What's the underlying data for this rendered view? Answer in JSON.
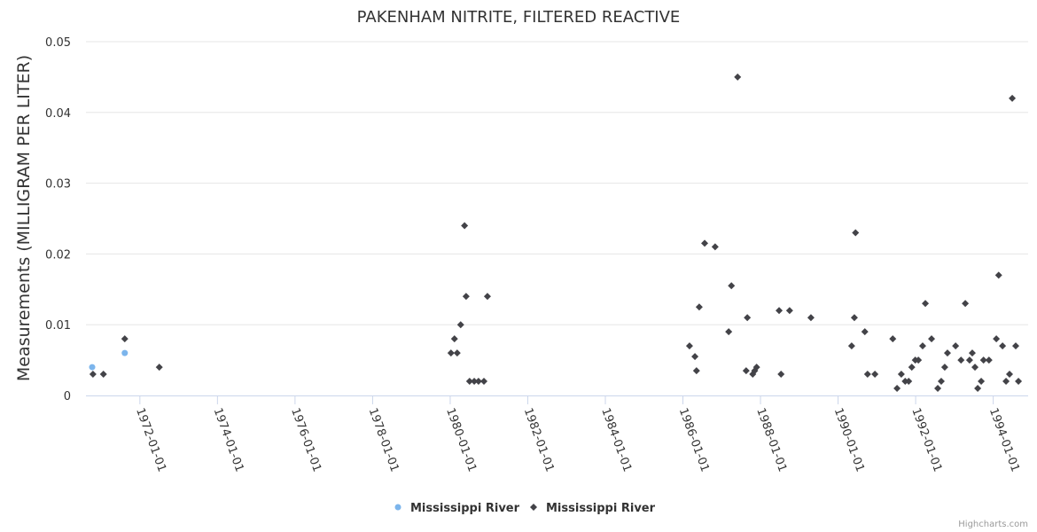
{
  "chart_data": {
    "type": "scatter",
    "title": "PAKENHAM NITRITE, FILTERED REACTIVE",
    "xlabel": "",
    "ylabel": "Measurements (MILLIGRAM PER LITER)",
    "xlim": [
      1970.61,
      1994.9
    ],
    "ylim": [
      0,
      0.05
    ],
    "x_ticks": [
      1972,
      1974,
      1976,
      1978,
      1980,
      1982,
      1984,
      1986,
      1988,
      1990,
      1992,
      1994
    ],
    "x_tick_labels": [
      "1972-01-01",
      "1974-01-01",
      "1976-01-01",
      "1978-01-01",
      "1980-01-01",
      "1982-01-01",
      "1984-01-01",
      "1986-01-01",
      "1988-01-01",
      "1990-01-01",
      "1992-01-01",
      "1994-01-01"
    ],
    "y_ticks": [
      0,
      0.01,
      0.02,
      0.03,
      0.04,
      0.05
    ],
    "y_tick_labels": [
      "0",
      "0.01",
      "0.02",
      "0.03",
      "0.04",
      "0.05"
    ],
    "grid": true,
    "legend_position": "bottom-center",
    "credit": "Highcharts.com",
    "series": [
      {
        "name": "Mississippi River",
        "color": "#7cb5ec",
        "marker": "circle",
        "points": [
          [
            1970.77,
            0.004
          ],
          [
            1971.61,
            0.006
          ]
        ]
      },
      {
        "name": "Mississippi River",
        "color": "#434348",
        "marker": "diamond",
        "points": [
          [
            1970.79,
            0.003
          ],
          [
            1971.06,
            0.003
          ],
          [
            1971.61,
            0.008
          ],
          [
            1972.5,
            0.004
          ],
          [
            1980.02,
            0.006
          ],
          [
            1980.11,
            0.008
          ],
          [
            1980.18,
            0.006
          ],
          [
            1980.27,
            0.01
          ],
          [
            1980.37,
            0.024
          ],
          [
            1980.41,
            0.014
          ],
          [
            1980.5,
            0.002
          ],
          [
            1980.62,
            0.002
          ],
          [
            1980.73,
            0.002
          ],
          [
            1980.87,
            0.002
          ],
          [
            1980.96,
            0.014
          ],
          [
            1986.17,
            0.007
          ],
          [
            1986.31,
            0.0055
          ],
          [
            1986.35,
            0.0035
          ],
          [
            1986.42,
            0.0125
          ],
          [
            1986.56,
            0.0215
          ],
          [
            1986.83,
            0.021
          ],
          [
            1987.18,
            0.009
          ],
          [
            1987.25,
            0.0155
          ],
          [
            1987.41,
            0.045
          ],
          [
            1987.63,
            0.0035
          ],
          [
            1987.66,
            0.011
          ],
          [
            1987.8,
            0.003
          ],
          [
            1987.85,
            0.0035
          ],
          [
            1987.9,
            0.004
          ],
          [
            1988.48,
            0.012
          ],
          [
            1988.53,
            0.003
          ],
          [
            1988.75,
            0.012
          ],
          [
            1989.3,
            0.011
          ],
          [
            1990.35,
            0.007
          ],
          [
            1990.42,
            0.011
          ],
          [
            1990.45,
            0.023
          ],
          [
            1990.69,
            0.009
          ],
          [
            1990.76,
            0.003
          ],
          [
            1990.95,
            0.003
          ],
          [
            1991.41,
            0.008
          ],
          [
            1991.52,
            0.001
          ],
          [
            1991.63,
            0.003
          ],
          [
            1991.73,
            0.002
          ],
          [
            1991.82,
            0.002
          ],
          [
            1991.9,
            0.004
          ],
          [
            1991.99,
            0.005
          ],
          [
            1992.07,
            0.005
          ],
          [
            1992.18,
            0.007
          ],
          [
            1992.25,
            0.013
          ],
          [
            1992.41,
            0.008
          ],
          [
            1992.57,
            0.001
          ],
          [
            1992.66,
            0.002
          ],
          [
            1992.75,
            0.004
          ],
          [
            1992.82,
            0.006
          ],
          [
            1993.03,
            0.007
          ],
          [
            1993.17,
            0.005
          ],
          [
            1993.28,
            0.013
          ],
          [
            1993.39,
            0.005
          ],
          [
            1993.46,
            0.006
          ],
          [
            1993.53,
            0.004
          ],
          [
            1993.6,
            0.001
          ],
          [
            1993.69,
            0.002
          ],
          [
            1993.75,
            0.005
          ],
          [
            1993.89,
            0.005
          ],
          [
            1994.08,
            0.008
          ],
          [
            1994.14,
            0.017
          ],
          [
            1994.24,
            0.007
          ],
          [
            1994.33,
            0.002
          ],
          [
            1994.42,
            0.003
          ],
          [
            1994.49,
            0.042
          ],
          [
            1994.58,
            0.007
          ],
          [
            1994.65,
            0.002
          ]
        ]
      }
    ]
  }
}
